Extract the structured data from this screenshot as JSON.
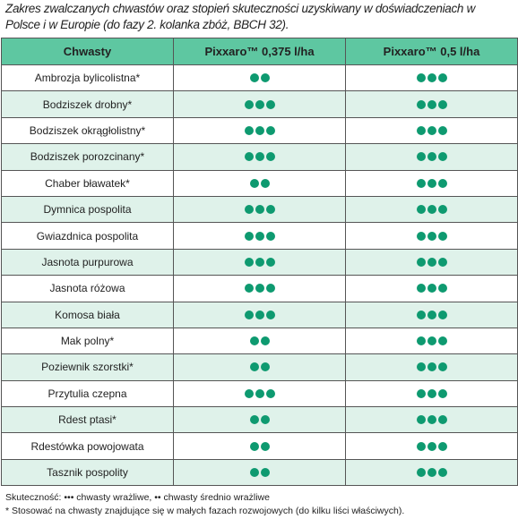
{
  "caption": "Zakres zwalczanych chwastów oraz stopień skuteczności uzyskiwany w doświadczeniach w Polsce i w Europie (do fazy 2. kolanka zbóż, BBCH 32).",
  "table": {
    "header": [
      "Chwasty",
      "Pixxaro™ 0,375 l/ha",
      "Pixxaro™ 0,5 l/ha"
    ],
    "rows": [
      [
        "Ambrozja bylicolistna*",
        2,
        3
      ],
      [
        "Bodziszek drobny*",
        3,
        3
      ],
      [
        "Bodziszek okrągłolistny*",
        3,
        3
      ],
      [
        "Bodziszek porozcinany*",
        3,
        3
      ],
      [
        "Chaber bławatek*",
        2,
        3
      ],
      [
        "Dymnica pospolita",
        3,
        3
      ],
      [
        "Gwiazdnica pospolita",
        3,
        3
      ],
      [
        "Jasnota purpurowa",
        3,
        3
      ],
      [
        "Jasnota różowa",
        3,
        3
      ],
      [
        "Komosa biała",
        3,
        3
      ],
      [
        "Mak polny*",
        2,
        3
      ],
      [
        "Poziewnik szorstki*",
        2,
        3
      ],
      [
        "Przytulia czepna",
        3,
        3
      ],
      [
        "Rdest ptasi*",
        2,
        3
      ],
      [
        "Rdestówka powojowata",
        2,
        3
      ],
      [
        "Tasznik pospolity",
        2,
        3
      ]
    ]
  },
  "footnotes": [
    "Skuteczność:  ••• chwasty wrażliwe, •• chwasty średnio wrażliwe",
    "* Stosować na chwasty znajdujące się w małych fazach rozwojowych (do kilku liści właściwych)."
  ]
}
